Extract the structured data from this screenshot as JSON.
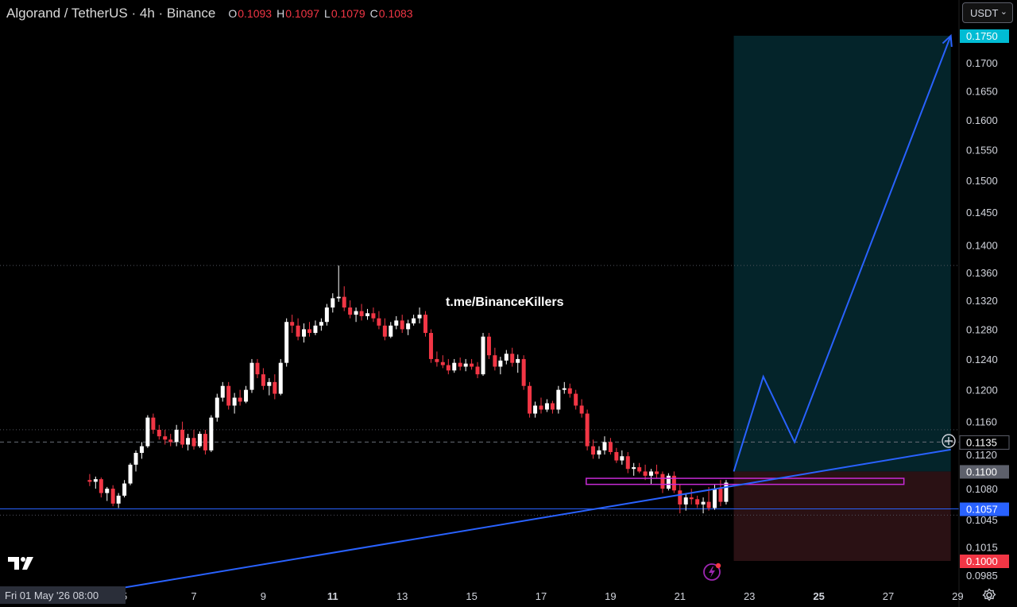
{
  "header": {
    "symbol": "Algorand / TetherUS · 4h · Binance",
    "ohlc": [
      {
        "key": "O",
        "value": "0.1093"
      },
      {
        "key": "H",
        "value": "0.1097"
      },
      {
        "key": "L",
        "value": "0.1079"
      },
      {
        "key": "C",
        "value": "0.1083"
      }
    ]
  },
  "currency_selector": "USDT",
  "watermark": "t.me/BinanceKillers",
  "crosshair_date": "Fri 01 May '26   08:00",
  "colors": {
    "up": "#ffffff",
    "down": "#f23645",
    "trend": "#2962ff",
    "profit_zone": "#04242a",
    "loss_zone": "#2a1114",
    "zone_box": "#c72bd6",
    "target_badge": "#00bcd4",
    "current_badge": "#2962ff",
    "stop_badge": "#f23645",
    "entry_badge": "#5d606b"
  },
  "icons": [
    "tradingview-logo-icon",
    "settings-gear-icon",
    "flash-icon",
    "add-plus-icon",
    "chevron-down-icon"
  ],
  "chart_data": {
    "type": "candlestick",
    "title": "Algorand / TetherUS · 4h · Binance",
    "x_axis": {
      "ticks": [
        {
          "day": 5,
          "label": "5"
        },
        {
          "day": 7,
          "label": "7"
        },
        {
          "day": 9,
          "label": "9"
        },
        {
          "day": 11,
          "label": "11"
        },
        {
          "day": 13,
          "label": "13"
        },
        {
          "day": 15,
          "label": "15"
        },
        {
          "day": 17,
          "label": "17"
        },
        {
          "day": 19,
          "label": "19"
        },
        {
          "day": 21,
          "label": "21"
        },
        {
          "day": 23,
          "label": "23"
        },
        {
          "day": 25,
          "label": "25"
        },
        {
          "day": 27,
          "label": "27"
        },
        {
          "day": 29,
          "label": "29"
        }
      ],
      "range": [
        4.0,
        29.0
      ]
    },
    "y_axis": {
      "range": [
        0.097,
        0.176
      ],
      "scale": "log",
      "ticks": [
        "0.1700",
        "0.1650",
        "0.1600",
        "0.1550",
        "0.1500",
        "0.1450",
        "0.1400",
        "0.1360",
        "0.1320",
        "0.1280",
        "0.1240",
        "0.1200",
        "0.1160",
        "0.1120",
        "0.1080",
        "0.1045",
        "0.1015",
        "0.0985"
      ]
    },
    "price_badges": [
      {
        "label": "0.1750",
        "price": 0.175,
        "role": "target"
      },
      {
        "label": "0.1135",
        "price": 0.1135,
        "role": "current"
      },
      {
        "label": "0.1100",
        "price": 0.11,
        "role": "entry"
      },
      {
        "label": "0.1057",
        "price": 0.1057,
        "role": "support"
      },
      {
        "label": "0.1000",
        "price": 0.1,
        "role": "stop"
      }
    ],
    "horizontal_lines": [
      {
        "price": 0.137,
        "style": "dotted"
      },
      {
        "price": 0.115,
        "style": "dotted"
      },
      {
        "price": 0.1135,
        "style": "dashed"
      },
      {
        "price": 0.1057,
        "style": "solid"
      },
      {
        "price": 0.105,
        "style": "dotted"
      }
    ],
    "position": {
      "entry": 0.11,
      "target": 0.175,
      "stop": 0.1,
      "start_day": 22.55,
      "end_day": 28.8
    },
    "zone_box": {
      "top": 0.1092,
      "bottom": 0.1085,
      "start_day": 18.3,
      "end_day": 27.45
    },
    "trendline": {
      "points": [
        [
          5.0,
          0.0972
        ],
        [
          28.8,
          0.1126
        ]
      ]
    },
    "projection_path": [
      [
        22.55,
        0.11
      ],
      [
        23.4,
        0.1217
      ],
      [
        24.3,
        0.1135
      ],
      [
        28.8,
        0.175
      ]
    ],
    "candles": [
      [
        4.0,
        0.109,
        0.1097,
        0.1083,
        0.1088
      ],
      [
        4.17,
        0.1088,
        0.1094,
        0.108,
        0.1091
      ],
      [
        4.33,
        0.1091,
        0.1093,
        0.107,
        0.1075
      ],
      [
        4.5,
        0.1075,
        0.1082,
        0.1066,
        0.108
      ],
      [
        4.67,
        0.108,
        0.1084,
        0.106,
        0.1063
      ],
      [
        4.83,
        0.1063,
        0.1075,
        0.1058,
        0.1072
      ],
      [
        5.0,
        0.1072,
        0.109,
        0.107,
        0.1086
      ],
      [
        5.17,
        0.1086,
        0.111,
        0.1084,
        0.1108
      ],
      [
        5.33,
        0.1108,
        0.1125,
        0.11,
        0.1122
      ],
      [
        5.5,
        0.1122,
        0.1135,
        0.1115,
        0.113
      ],
      [
        5.67,
        0.113,
        0.1168,
        0.1128,
        0.1165
      ],
      [
        5.83,
        0.1165,
        0.117,
        0.1145,
        0.115
      ],
      [
        6.0,
        0.115,
        0.1156,
        0.1138,
        0.1142
      ],
      [
        6.17,
        0.1142,
        0.115,
        0.1132,
        0.1138
      ],
      [
        6.33,
        0.1138,
        0.1145,
        0.113,
        0.1135
      ],
      [
        6.5,
        0.1135,
        0.1156,
        0.113,
        0.115
      ],
      [
        6.67,
        0.115,
        0.116,
        0.1128,
        0.1132
      ],
      [
        6.83,
        0.1132,
        0.1145,
        0.1125,
        0.114
      ],
      [
        7.0,
        0.114,
        0.115,
        0.1126,
        0.113
      ],
      [
        7.17,
        0.113,
        0.1148,
        0.1128,
        0.1145
      ],
      [
        7.33,
        0.1145,
        0.115,
        0.112,
        0.1125
      ],
      [
        7.5,
        0.1125,
        0.1168,
        0.1123,
        0.1165
      ],
      [
        7.67,
        0.1165,
        0.1195,
        0.116,
        0.119
      ],
      [
        7.83,
        0.119,
        0.121,
        0.1185,
        0.1205
      ],
      [
        8.0,
        0.1205,
        0.121,
        0.1175,
        0.118
      ],
      [
        8.17,
        0.118,
        0.1196,
        0.117,
        0.119
      ],
      [
        8.33,
        0.119,
        0.12,
        0.118,
        0.1185
      ],
      [
        8.5,
        0.1185,
        0.1205,
        0.1183,
        0.12
      ],
      [
        8.67,
        0.12,
        0.124,
        0.1196,
        0.1235
      ],
      [
        8.83,
        0.1235,
        0.124,
        0.1215,
        0.122
      ],
      [
        9.0,
        0.122,
        0.1228,
        0.12,
        0.1205
      ],
      [
        9.17,
        0.1205,
        0.1215,
        0.1193,
        0.121
      ],
      [
        9.33,
        0.121,
        0.122,
        0.1188,
        0.1195
      ],
      [
        9.5,
        0.1195,
        0.124,
        0.1193,
        0.1235
      ],
      [
        9.67,
        0.1235,
        0.1295,
        0.123,
        0.129
      ],
      [
        9.83,
        0.129,
        0.13,
        0.1275,
        0.1285
      ],
      [
        10.0,
        0.1285,
        0.1295,
        0.1265,
        0.127
      ],
      [
        10.17,
        0.127,
        0.1288,
        0.1262,
        0.128
      ],
      [
        10.33,
        0.128,
        0.129,
        0.127,
        0.1275
      ],
      [
        10.5,
        0.1275,
        0.1292,
        0.1272,
        0.1285
      ],
      [
        10.67,
        0.1285,
        0.1295,
        0.1278,
        0.129
      ],
      [
        10.83,
        0.129,
        0.1315,
        0.1285,
        0.131
      ],
      [
        11.0,
        0.131,
        0.133,
        0.1303,
        0.1323
      ],
      [
        11.17,
        0.1323,
        0.137,
        0.1318,
        0.1325
      ],
      [
        11.33,
        0.1325,
        0.134,
        0.1305,
        0.131
      ],
      [
        11.5,
        0.131,
        0.132,
        0.1295,
        0.13
      ],
      [
        11.67,
        0.13,
        0.131,
        0.129,
        0.1305
      ],
      [
        11.83,
        0.1305,
        0.1315,
        0.1292,
        0.1298
      ],
      [
        12.0,
        0.1298,
        0.1308,
        0.1293,
        0.1302
      ],
      [
        12.17,
        0.1302,
        0.131,
        0.129,
        0.1295
      ],
      [
        12.33,
        0.1295,
        0.1305,
        0.128,
        0.1285
      ],
      [
        12.5,
        0.1285,
        0.1295,
        0.1265,
        0.127
      ],
      [
        12.67,
        0.127,
        0.129,
        0.1268,
        0.1285
      ],
      [
        12.83,
        0.1285,
        0.1298,
        0.128,
        0.1292
      ],
      [
        13.0,
        0.1292,
        0.13,
        0.1275,
        0.128
      ],
      [
        13.17,
        0.128,
        0.1293,
        0.1272,
        0.1288
      ],
      [
        13.33,
        0.1288,
        0.13,
        0.1285,
        0.1295
      ],
      [
        13.5,
        0.1295,
        0.131,
        0.1288,
        0.13
      ],
      [
        13.67,
        0.13,
        0.1305,
        0.127,
        0.1275
      ],
      [
        13.83,
        0.1275,
        0.128,
        0.1235,
        0.124
      ],
      [
        14.0,
        0.124,
        0.125,
        0.123,
        0.1236
      ],
      [
        14.17,
        0.1236,
        0.1245,
        0.1228,
        0.1232
      ],
      [
        14.33,
        0.1232,
        0.124,
        0.122,
        0.1225
      ],
      [
        14.5,
        0.1225,
        0.124,
        0.1222,
        0.1235
      ],
      [
        14.67,
        0.1235,
        0.1242,
        0.1225,
        0.123
      ],
      [
        14.83,
        0.123,
        0.124,
        0.1224,
        0.1234
      ],
      [
        15.0,
        0.1234,
        0.124,
        0.1226,
        0.123
      ],
      [
        15.17,
        0.123,
        0.1236,
        0.1215,
        0.122
      ],
      [
        15.33,
        0.122,
        0.1275,
        0.1218,
        0.127
      ],
      [
        15.5,
        0.127,
        0.1275,
        0.124,
        0.1245
      ],
      [
        15.67,
        0.1245,
        0.1255,
        0.1225,
        0.123
      ],
      [
        15.83,
        0.123,
        0.1243,
        0.122,
        0.1238
      ],
      [
        16.0,
        0.1238,
        0.1252,
        0.1233,
        0.1247
      ],
      [
        16.17,
        0.1247,
        0.1255,
        0.123,
        0.1235
      ],
      [
        16.33,
        0.1235,
        0.1246,
        0.1222,
        0.124
      ],
      [
        16.5,
        0.124,
        0.1245,
        0.12,
        0.1205
      ],
      [
        16.67,
        0.1205,
        0.121,
        0.1165,
        0.117
      ],
      [
        16.83,
        0.117,
        0.1185,
        0.1165,
        0.118
      ],
      [
        17.0,
        0.118,
        0.119,
        0.117,
        0.1175
      ],
      [
        17.17,
        0.1175,
        0.1188,
        0.1172,
        0.1183
      ],
      [
        17.33,
        0.1183,
        0.1186,
        0.117,
        0.1175
      ],
      [
        17.5,
        0.1175,
        0.1205,
        0.117,
        0.12
      ],
      [
        17.67,
        0.12,
        0.121,
        0.1195,
        0.1202
      ],
      [
        17.83,
        0.1202,
        0.1208,
        0.119,
        0.1195
      ],
      [
        18.0,
        0.1195,
        0.12,
        0.1175,
        0.118
      ],
      [
        18.17,
        0.118,
        0.1188,
        0.1165,
        0.117
      ],
      [
        18.33,
        0.117,
        0.1175,
        0.1125,
        0.113
      ],
      [
        18.5,
        0.113,
        0.1138,
        0.1115,
        0.112
      ],
      [
        18.67,
        0.112,
        0.113,
        0.1115,
        0.1125
      ],
      [
        18.83,
        0.1125,
        0.1142,
        0.112,
        0.1135
      ],
      [
        19.0,
        0.1135,
        0.114,
        0.112,
        0.1123
      ],
      [
        19.17,
        0.1123,
        0.1128,
        0.111,
        0.1113
      ],
      [
        19.33,
        0.1113,
        0.1125,
        0.1108,
        0.1118
      ],
      [
        19.5,
        0.1118,
        0.1123,
        0.1098,
        0.1103
      ],
      [
        19.67,
        0.1103,
        0.111,
        0.1095,
        0.1105
      ],
      [
        19.83,
        0.1105,
        0.111,
        0.1098,
        0.11
      ],
      [
        20.0,
        0.11,
        0.1108,
        0.109,
        0.1095
      ],
      [
        20.17,
        0.1095,
        0.1103,
        0.1085,
        0.11
      ],
      [
        20.33,
        0.11,
        0.1108,
        0.1092,
        0.1097
      ],
      [
        20.5,
        0.1097,
        0.11,
        0.1075,
        0.108
      ],
      [
        20.67,
        0.108,
        0.1098,
        0.1078,
        0.1095
      ],
      [
        20.83,
        0.1095,
        0.11,
        0.1075,
        0.1078
      ],
      [
        21.0,
        0.1078,
        0.1085,
        0.1052,
        0.1062
      ],
      [
        21.17,
        0.1062,
        0.1075,
        0.1055,
        0.107
      ],
      [
        21.33,
        0.107,
        0.108,
        0.1062,
        0.1068
      ],
      [
        21.5,
        0.1068,
        0.1072,
        0.1058,
        0.1062
      ],
      [
        21.67,
        0.1062,
        0.107,
        0.1052,
        0.1065
      ],
      [
        21.83,
        0.1065,
        0.1082,
        0.1055,
        0.1058
      ],
      [
        22.0,
        0.1058,
        0.1085,
        0.1056,
        0.108
      ],
      [
        22.17,
        0.108,
        0.109,
        0.106,
        0.1065
      ],
      [
        22.33,
        0.1065,
        0.109,
        0.1062,
        0.1087
      ]
    ]
  }
}
